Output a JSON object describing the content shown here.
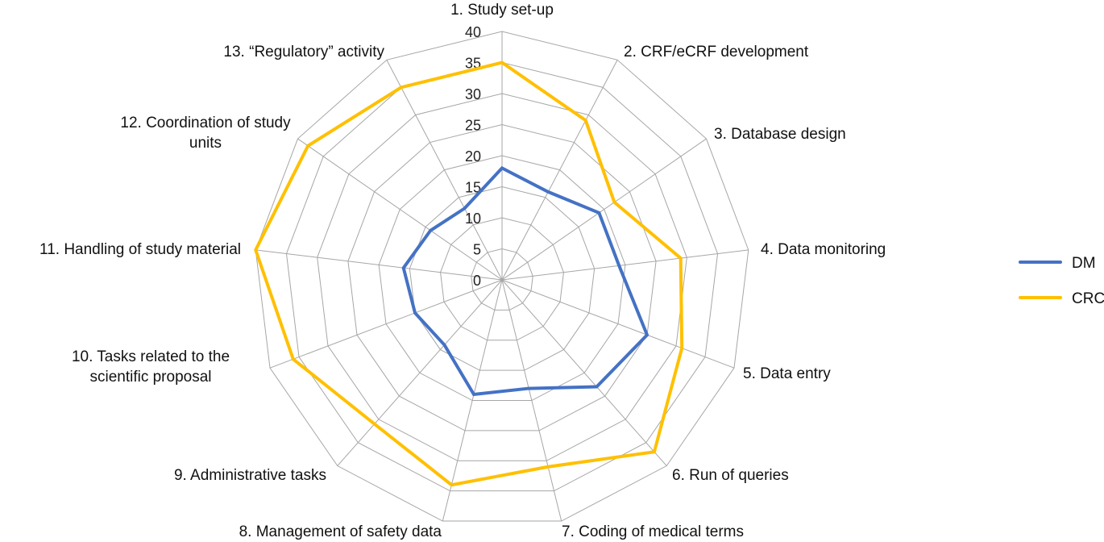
{
  "chart_data": {
    "type": "radar",
    "title": "",
    "categories": [
      "1. Study set-up",
      "2. CRF/eCRF development",
      "3. Database design",
      "4. Data monitoring",
      "5. Data entry",
      "6. Run of queries",
      "7.  Coding of medical terms",
      "8.  Management of safety data",
      "9.  Administrative tasks",
      "10. Tasks related to the|scientific proposal",
      "11. Handling of study material",
      "12. Coordination of study|units",
      "13. “Regulatory” activity"
    ],
    "series": [
      {
        "name": "DM",
        "color": "#4472c4",
        "values": [
          18,
          16,
          19,
          19,
          25,
          23,
          18,
          19,
          14,
          15,
          16,
          14,
          13
        ]
      },
      {
        "name": "CRC",
        "color": "#ffc000",
        "values": [
          35,
          29,
          22,
          29,
          31,
          37,
          31,
          34,
          31,
          36,
          40,
          38,
          35
        ]
      }
    ],
    "rlim": [
      0,
      40
    ],
    "ticks": [
      0,
      5,
      10,
      15,
      20,
      25,
      30,
      35,
      40
    ],
    "tick_labels": [
      "0",
      "5",
      "10",
      "15",
      "20",
      "25",
      "30",
      "35",
      "40"
    ],
    "grid": true,
    "legend": {
      "position": "right",
      "entries": [
        "DM",
        "CRC"
      ]
    }
  }
}
